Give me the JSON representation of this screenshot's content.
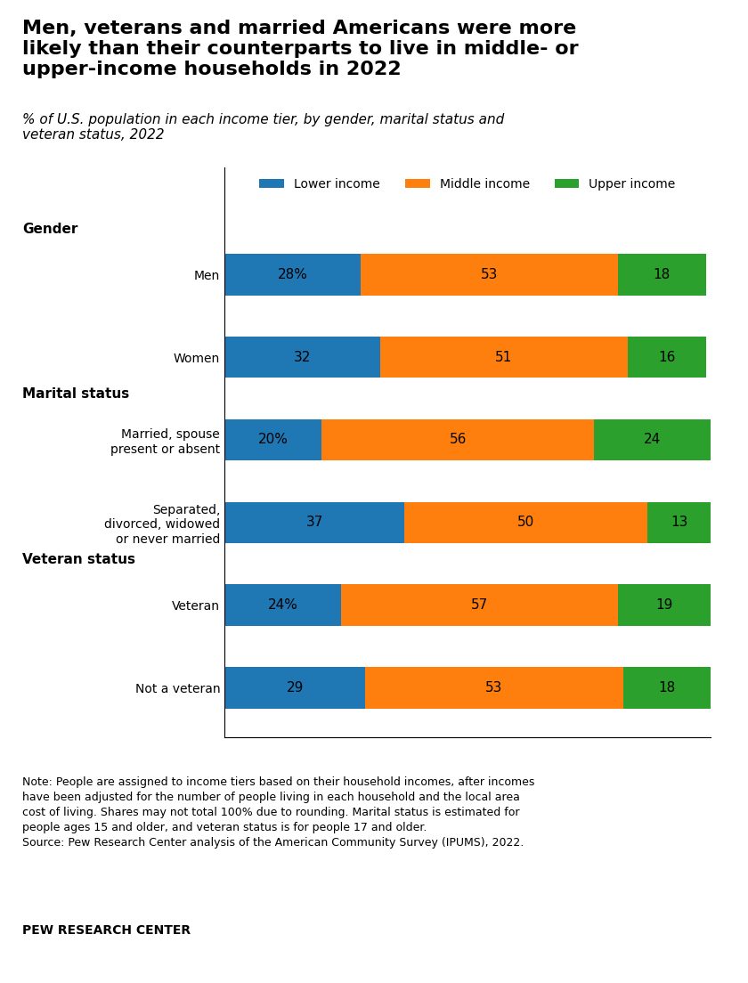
{
  "chart_data": {
    "type": "bar",
    "orientation": "horizontal",
    "stacked": true,
    "title": "Men, veterans and married Americans were more\nlikely than their counterparts to live in middle- or\nupper-income households in 2022",
    "subtitle": "% of U.S. population in each income tier, by gender, marital status and\nveteran status, 2022",
    "categories": [
      "Men",
      "Women",
      "Married, spouse\npresent or absent",
      "Separated,\ndivorced, widowed\nor never married",
      "Veteran",
      "Not a veteran"
    ],
    "groups": [
      "Gender",
      "Gender",
      "Marital status",
      "Marital status",
      "Veteran status",
      "Veteran status"
    ],
    "series": [
      {
        "name": "Lower income",
        "values": [
          28,
          32,
          20,
          37,
          24,
          29
        ],
        "value_labels": [
          "28%",
          "32",
          "20%",
          "37",
          "24%",
          "29"
        ]
      },
      {
        "name": "Middle income",
        "values": [
          53,
          51,
          56,
          50,
          57,
          53
        ]
      },
      {
        "name": "Upper income",
        "values": [
          18,
          16,
          24,
          13,
          19,
          18
        ]
      }
    ],
    "xlim": [
      0,
      100
    ],
    "data_labels": true,
    "tick_labels": "y",
    "grid": false,
    "legend": "upper center",
    "note": "Note: People are assigned to income tiers based on their household incomes, after incomes\nhave been adjusted for the number of people living in each household and the local area\ncost of living. Shares may not total 100% due to rounding. Marital status is estimated for\npeople ages 15 and older, and veteran status is for people 17 and older.\nSource: Pew Research Center analysis of the American Community Survey (IPUMS), 2022.",
    "source": "PEW RESEARCH CENTER"
  }
}
